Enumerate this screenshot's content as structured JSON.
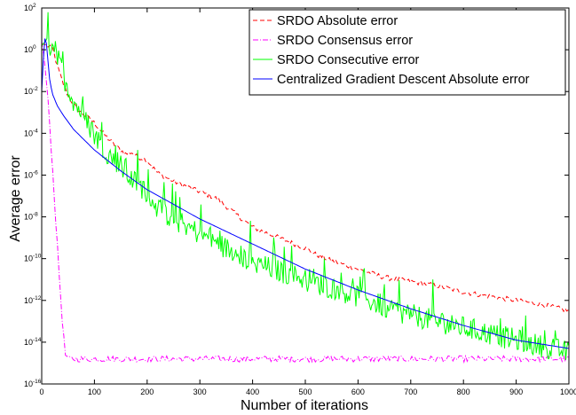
{
  "chart_data": {
    "type": "line",
    "title": "",
    "xlabel": "Number of iterations",
    "ylabel": "Average error",
    "xlim": [
      0,
      1000
    ],
    "ylim_log10": [
      -16,
      2
    ],
    "y_scale": "log",
    "x_ticks": [
      0,
      100,
      200,
      300,
      400,
      500,
      600,
      700,
      800,
      900,
      1000
    ],
    "y_ticks": [
      {
        "base": "10",
        "exp": "2"
      },
      {
        "base": "10",
        "exp": "0"
      },
      {
        "base": "10",
        "exp": "-2"
      },
      {
        "base": "10",
        "exp": "-4"
      },
      {
        "base": "10",
        "exp": "-6"
      },
      {
        "base": "10",
        "exp": "-8"
      },
      {
        "base": "10",
        "exp": "-10"
      },
      {
        "base": "10",
        "exp": "-12"
      },
      {
        "base": "10",
        "exp": "-14"
      },
      {
        "base": "10",
        "exp": "-16"
      }
    ],
    "grid": false,
    "legend_position": "top-right",
    "series": [
      {
        "name": "SRDO Absolute error",
        "color": "#ff0000",
        "dash": "dashed",
        "x": [
          0,
          10,
          20,
          30,
          40,
          50,
          60,
          70,
          80,
          100,
          120,
          140,
          160,
          170,
          180,
          200,
          220,
          250,
          300,
          330,
          350,
          400,
          450,
          500,
          520,
          550,
          600,
          650,
          700,
          750,
          800,
          850,
          900,
          950,
          1000
        ],
        "log10": [
          0.3,
          0.2,
          0.1,
          -0.8,
          -1.6,
          -2.2,
          -2.6,
          -2.9,
          -3.1,
          -3.5,
          -4.1,
          -4.6,
          -5.0,
          -4.9,
          -5.1,
          -5.3,
          -5.9,
          -6.3,
          -6.8,
          -7.1,
          -7.5,
          -8.5,
          -9.0,
          -9.5,
          -9.8,
          -10.1,
          -10.5,
          -10.9,
          -11.1,
          -11.3,
          -11.6,
          -11.8,
          -12.0,
          -12.2,
          -12.5
        ]
      },
      {
        "name": "SRDO Consensus error",
        "color": "#ff00ff",
        "dash": "dashdot",
        "x": [
          0,
          5,
          10,
          15,
          20,
          25,
          30,
          35,
          40,
          45,
          50,
          1000
        ],
        "log10": [
          0.4,
          -0.5,
          -1.8,
          -3.5,
          -5.5,
          -7.5,
          -9.5,
          -11.5,
          -13.3,
          -14.6,
          -14.8,
          -14.8
        ]
      },
      {
        "name": "SRDO Consecutive error",
        "color": "#00ff00",
        "dash": "solid",
        "x": [
          0,
          10,
          15,
          20,
          30,
          40,
          50,
          60,
          70,
          80,
          100,
          120,
          150,
          170,
          200,
          220,
          250,
          300,
          350,
          400,
          450,
          500,
          550,
          600,
          650,
          700,
          750,
          800,
          850,
          900,
          950,
          1000
        ],
        "log10": [
          0.2,
          0.5,
          0.1,
          0.5,
          -0.4,
          -1.2,
          -1.8,
          -2.4,
          -2.8,
          -3.3,
          -4.0,
          -4.8,
          -5.6,
          -6.2,
          -6.8,
          -7.6,
          -8.1,
          -8.8,
          -9.5,
          -10.2,
          -10.6,
          -11.0,
          -11.4,
          -11.8,
          -12.3,
          -12.7,
          -13.0,
          -13.3,
          -13.6,
          -13.9,
          -14.2,
          -14.5
        ]
      },
      {
        "name": "Centralized Gradient Descent Absolute error",
        "color": "#0000ff",
        "dash": "solid",
        "x": [
          0,
          3,
          5,
          8,
          10,
          15,
          20,
          30,
          40,
          60,
          80,
          100,
          150,
          200,
          250,
          300,
          350,
          400,
          500,
          600,
          700,
          800,
          900,
          1000
        ],
        "log10": [
          -2.0,
          -0.5,
          0.5,
          0.6,
          0.0,
          -1.4,
          -2.1,
          -2.7,
          -3.1,
          -3.8,
          -4.3,
          -4.8,
          -5.8,
          -6.7,
          -7.4,
          -8.1,
          -8.7,
          -9.3,
          -10.5,
          -11.5,
          -12.4,
          -13.2,
          -13.9,
          -14.3
        ]
      }
    ]
  }
}
